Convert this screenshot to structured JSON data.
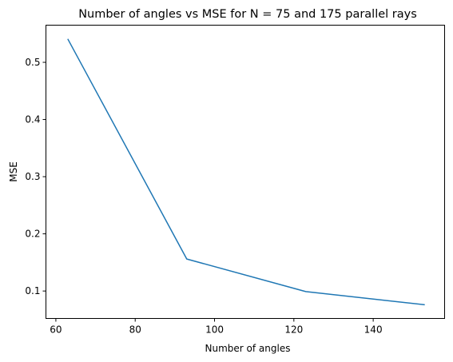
{
  "chart_data": {
    "type": "line",
    "title": "Number of angles vs MSE for N = 75 and 175 parallel rays",
    "xlabel": "Number of angles",
    "ylabel": "MSE",
    "xlim": [
      57.5,
      158
    ],
    "ylim": [
      0.052,
      0.565
    ],
    "xticks": [
      60,
      80,
      100,
      120,
      140
    ],
    "yticks": [
      0.1,
      0.2,
      0.3,
      0.4,
      0.5
    ],
    "xtick_labels": [
      "60",
      "80",
      "100",
      "120",
      "140"
    ],
    "ytick_labels": [
      "0.1",
      "0.2",
      "0.3",
      "0.4",
      "0.5"
    ],
    "grid": false,
    "series": [
      {
        "color": "#1f77b4",
        "x": [
          63,
          93,
          123,
          153
        ],
        "y": [
          0.541,
          0.156,
          0.099,
          0.076
        ]
      }
    ]
  }
}
